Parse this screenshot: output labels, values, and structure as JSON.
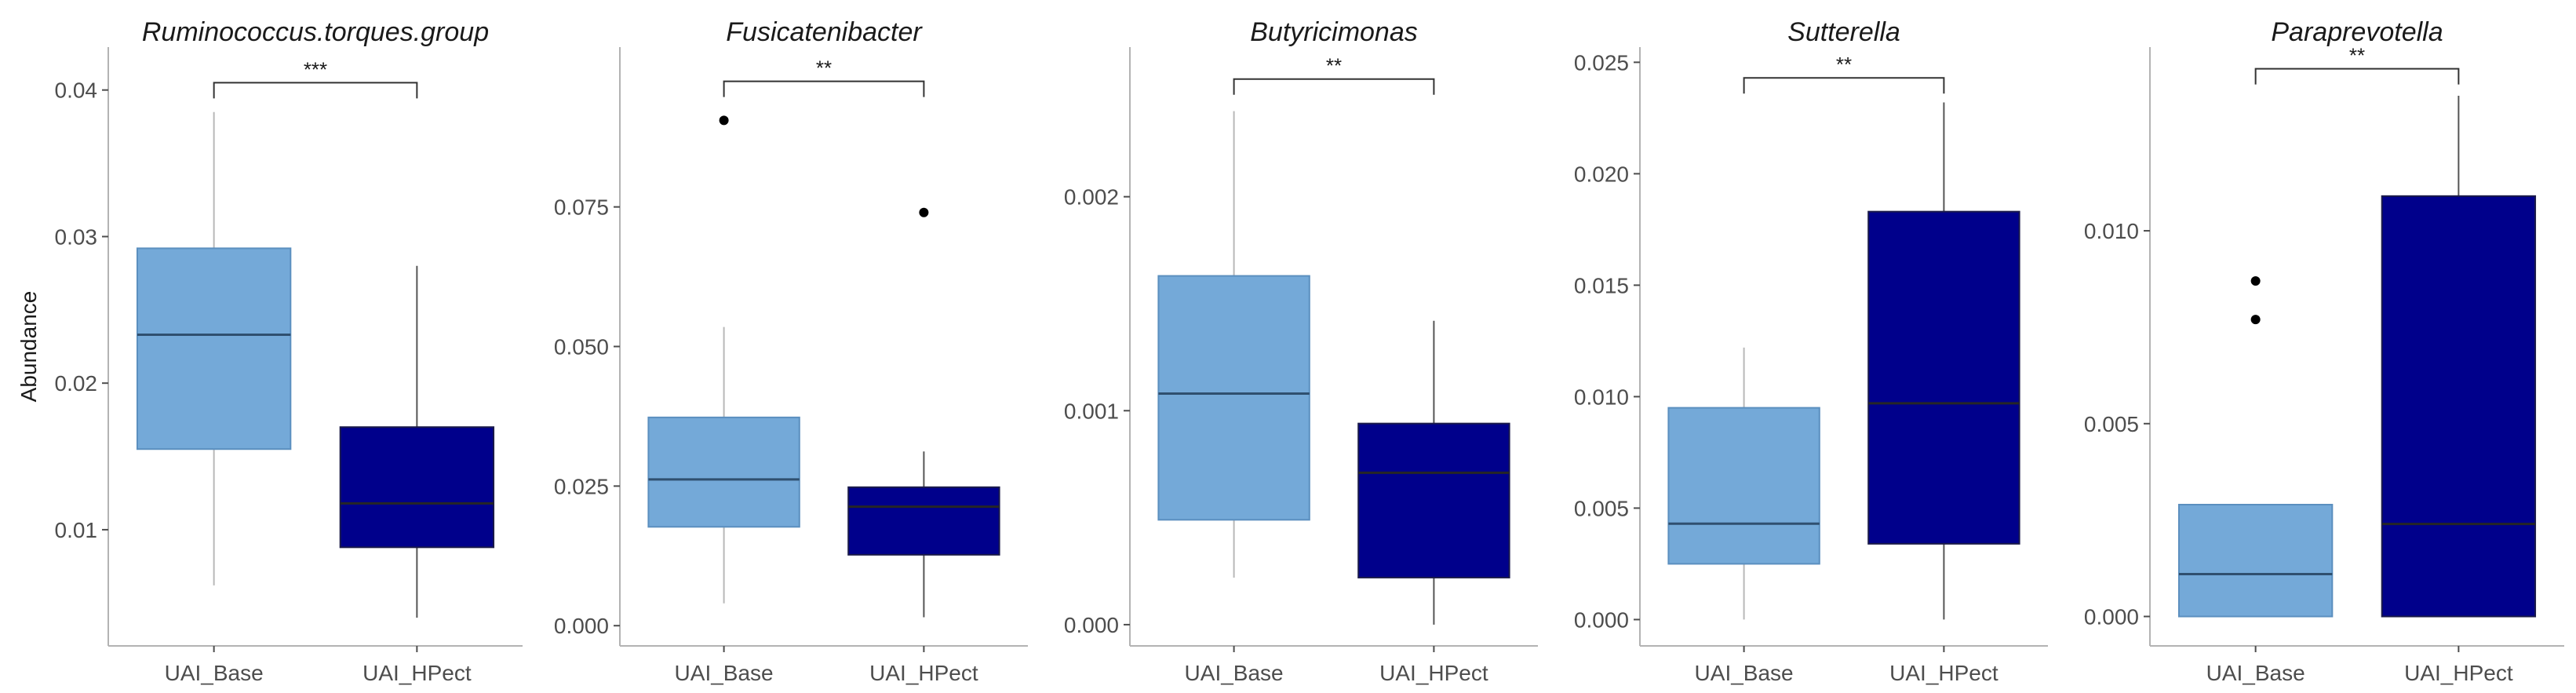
{
  "chart_data": [
    {
      "type": "box",
      "title": "Ruminococcus.torques.group",
      "ylabel": "Abundance",
      "ylim": [
        0.0025,
        0.0425
      ],
      "yticks": [
        0.01,
        0.02,
        0.03,
        0.04
      ],
      "ytick_labels": [
        "0.01",
        "0.02",
        "0.03",
        "0.04"
      ],
      "categories": [
        "UAI_Base",
        "UAI_HPect"
      ],
      "boxes": [
        {
          "q1": 0.0155,
          "median": 0.0233,
          "q3": 0.0292,
          "whisker_low": 0.0062,
          "whisker_high": 0.0385,
          "outliers": [],
          "color": "#74a9d8"
        },
        {
          "q1": 0.0088,
          "median": 0.0118,
          "q3": 0.017,
          "whisker_low": 0.004,
          "whisker_high": 0.028,
          "outliers": [],
          "color": "#00008b"
        }
      ],
      "significance": "***",
      "bracket_y": 0.0405
    },
    {
      "type": "box",
      "title": "Fusicatenibacter",
      "ylabel": "",
      "ylim": [
        -0.0025,
        0.1025
      ],
      "yticks": [
        0.0,
        0.025,
        0.05,
        0.075
      ],
      "ytick_labels": [
        "0.000",
        "0.025",
        "0.050",
        "0.075"
      ],
      "categories": [
        "UAI_Base",
        "UAI_HPect"
      ],
      "boxes": [
        {
          "q1": 0.0177,
          "median": 0.0262,
          "q3": 0.0373,
          "whisker_low": 0.004,
          "whisker_high": 0.0535,
          "outliers": [
            0.0905
          ],
          "color": "#74a9d8"
        },
        {
          "q1": 0.0127,
          "median": 0.0213,
          "q3": 0.0248,
          "whisker_low": 0.0015,
          "whisker_high": 0.0312,
          "outliers": [
            0.074
          ],
          "color": "#00008b"
        }
      ],
      "significance": "**",
      "bracket_y": 0.0975
    },
    {
      "type": "box",
      "title": "Butyricimonas",
      "ylabel": "",
      "ylim": [
        -7e-05,
        0.00267
      ],
      "yticks": [
        0.0,
        0.001,
        0.002
      ],
      "ytick_labels": [
        "0.000",
        "0.001",
        "0.002"
      ],
      "categories": [
        "UAI_Base",
        "UAI_HPect"
      ],
      "boxes": [
        {
          "q1": 0.00049,
          "median": 0.00108,
          "q3": 0.00163,
          "whisker_low": 0.00022,
          "whisker_high": 0.0024,
          "outliers": [],
          "color": "#74a9d8"
        },
        {
          "q1": 0.00022,
          "median": 0.00071,
          "q3": 0.00094,
          "whisker_low": 0.0,
          "whisker_high": 0.00142,
          "outliers": [],
          "color": "#00008b"
        }
      ],
      "significance": "**",
      "bracket_y": 0.00255
    },
    {
      "type": "box",
      "title": "Sutterella",
      "ylabel": "",
      "ylim": [
        -0.0009,
        0.0254
      ],
      "yticks": [
        0.0,
        0.005,
        0.01,
        0.015,
        0.02,
        0.025
      ],
      "ytick_labels": [
        "0.000",
        "0.005",
        "0.010",
        "0.015",
        "0.020",
        "0.025"
      ],
      "categories": [
        "UAI_Base",
        "UAI_HPect"
      ],
      "boxes": [
        {
          "q1": 0.0025,
          "median": 0.0043,
          "q3": 0.0095,
          "whisker_low": 0.0,
          "whisker_high": 0.0122,
          "outliers": [],
          "color": "#74a9d8"
        },
        {
          "q1": 0.0034,
          "median": 0.0097,
          "q3": 0.0183,
          "whisker_low": 0.0,
          "whisker_high": 0.0232,
          "outliers": [],
          "color": "#00008b"
        }
      ],
      "significance": "**",
      "bracket_y": 0.0243
    },
    {
      "type": "box",
      "title": "Paraprevotella",
      "ylabel": "",
      "ylim": [
        -0.0006,
        0.0146
      ],
      "yticks": [
        0.0,
        0.005,
        0.01
      ],
      "ytick_labels": [
        "0.000",
        "0.005",
        "0.010"
      ],
      "categories": [
        "UAI_Base",
        "UAI_HPect"
      ],
      "boxes": [
        {
          "q1": 0.0,
          "median": 0.0011,
          "q3": 0.0029,
          "whisker_low": 0.0,
          "whisker_high": 0.0029,
          "outliers": [
            0.0087,
            0.0077
          ],
          "color": "#74a9d8"
        },
        {
          "q1": 0.0,
          "median": 0.0024,
          "q3": 0.0109,
          "whisker_low": 0.0,
          "whisker_high": 0.0135,
          "outliers": [],
          "color": "#00008b"
        }
      ],
      "significance": "**",
      "bracket_y": 0.0142
    }
  ]
}
